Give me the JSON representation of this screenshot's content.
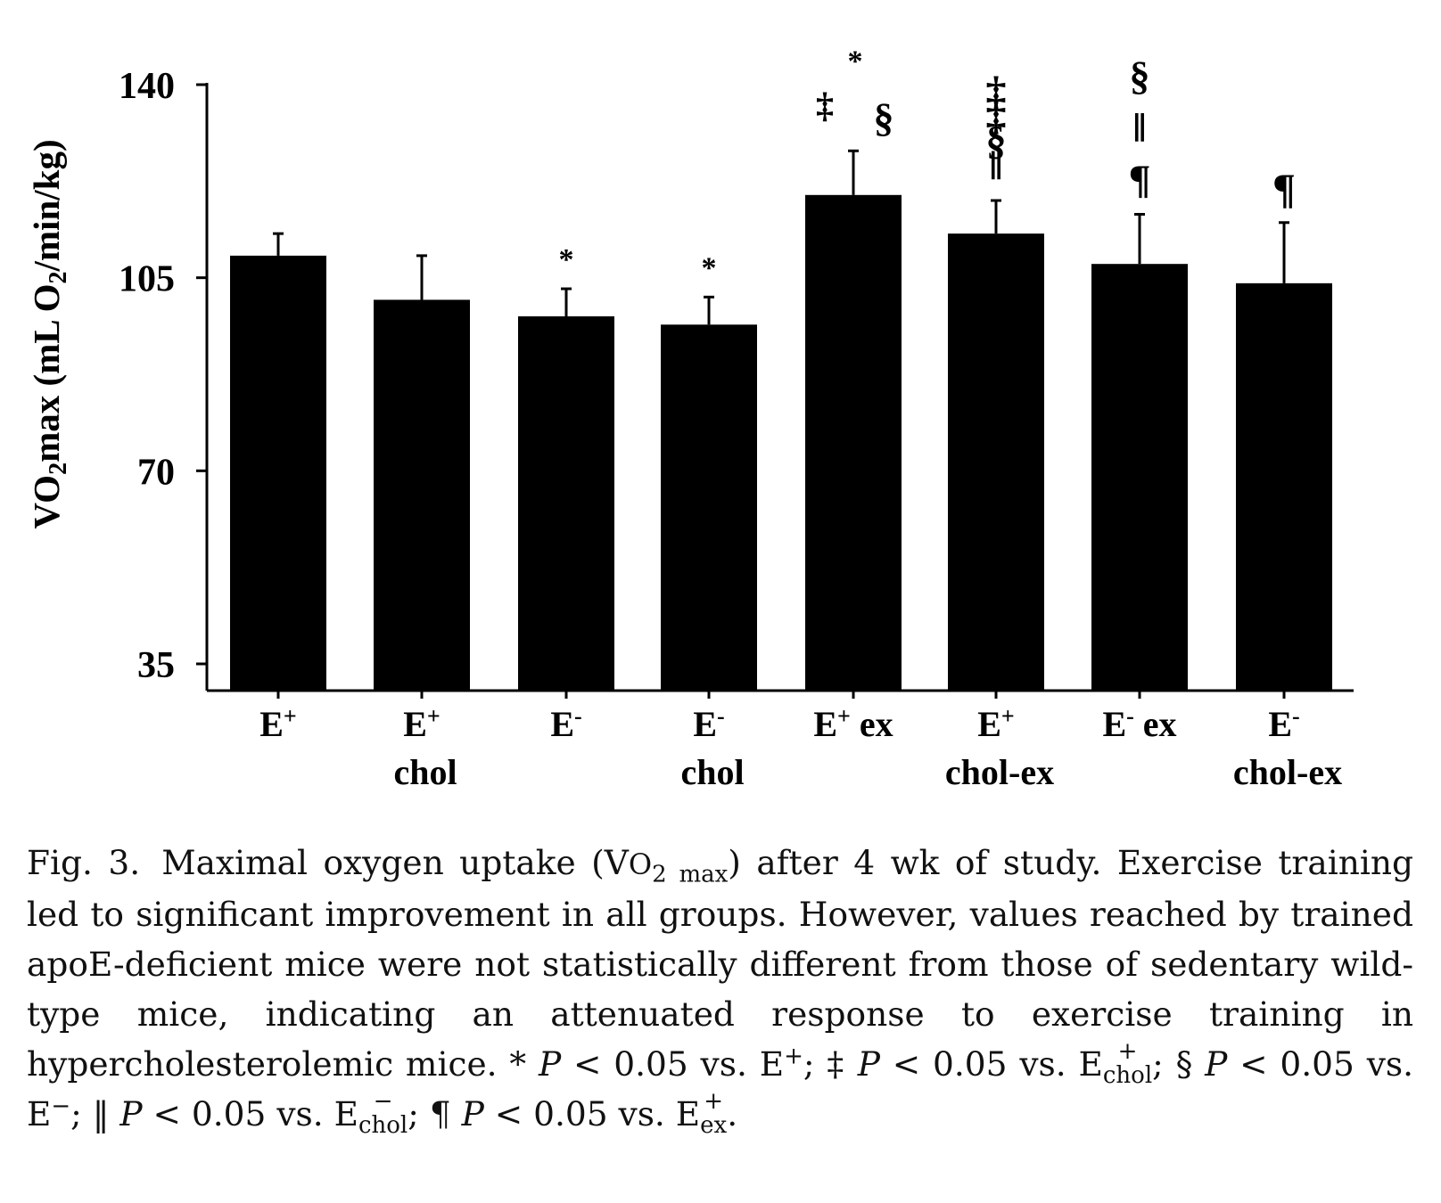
{
  "chart_data": {
    "type": "bar",
    "ylabel": "VO₂max (mL O₂/min/kg)",
    "ylabel_parts": {
      "a": "VO",
      "b": "2",
      "c": "max (mL O",
      "d": "2",
      "e": "/min/kg)"
    },
    "yticks": [
      35,
      70,
      105,
      140
    ],
    "ylim": [
      30,
      140
    ],
    "categories": [
      {
        "line1": "E",
        "sup": "+",
        "tail": "",
        "line2": ""
      },
      {
        "line1": "E",
        "sup": "+",
        "tail": "",
        "line2": "chol"
      },
      {
        "line1": "E",
        "sup": "-",
        "tail": "",
        "line2": ""
      },
      {
        "line1": "E",
        "sup": "-",
        "tail": "",
        "line2": "chol"
      },
      {
        "line1": "E",
        "sup": "+",
        "tail": " ex",
        "line2": ""
      },
      {
        "line1": "E",
        "sup": "+",
        "tail": "",
        "line2": "chol-ex"
      },
      {
        "line1": "E",
        "sup": "-",
        "tail": " ex",
        "line2": ""
      },
      {
        "line1": "E",
        "sup": "-",
        "tail": "",
        "line2": "chol-ex"
      }
    ],
    "values": [
      109,
      101,
      98,
      96.5,
      120,
      113,
      107.5,
      104
    ],
    "errors": [
      4,
      8,
      5,
      5,
      8,
      6,
      9,
      11
    ],
    "annotations": [
      [],
      [],
      [
        "*"
      ],
      [
        "*"
      ],
      [
        "‡",
        "*",
        "§"
      ],
      [
        "‡",
        "‡",
        "§",
        "‖"
      ],
      [
        "§",
        "‖",
        "¶"
      ],
      [
        "¶"
      ]
    ],
    "bar_color": "#000000",
    "grid": false
  },
  "caption": {
    "lead": "Fig. 3.",
    "p1": "Maximal oxygen uptake (V",
    "p1_small": "O",
    "p1_sub": "2 max",
    "p2": ") after 4 wk of study. Exercise training led to significant improvement in all groups. However, values reached by trained apoE-deficient mice were not statistically different from those of sedentary wild-type mice, indicating an attenuated response to exercise training in hypercholesterolemic mice.",
    "sym1": "*",
    "pv": "P",
    "lt": " < 0.05 vs. ",
    "ref1": "E",
    "ref1_sup": "+",
    "sep": "; ",
    "sym2": "‡",
    "ref2": "E",
    "ref2_sup": "+",
    "ref2_sub": "chol",
    "sym3": "§",
    "ref3": "E",
    "ref3_sup": "−",
    "sym4": "‖",
    "ref4": "E",
    "ref4_sup": "−",
    "ref4_sub": "chol",
    "sym5": "¶",
    "ref5": "E",
    "ref5_sup": "+",
    "ref5_sub": "ex",
    "end": "."
  }
}
